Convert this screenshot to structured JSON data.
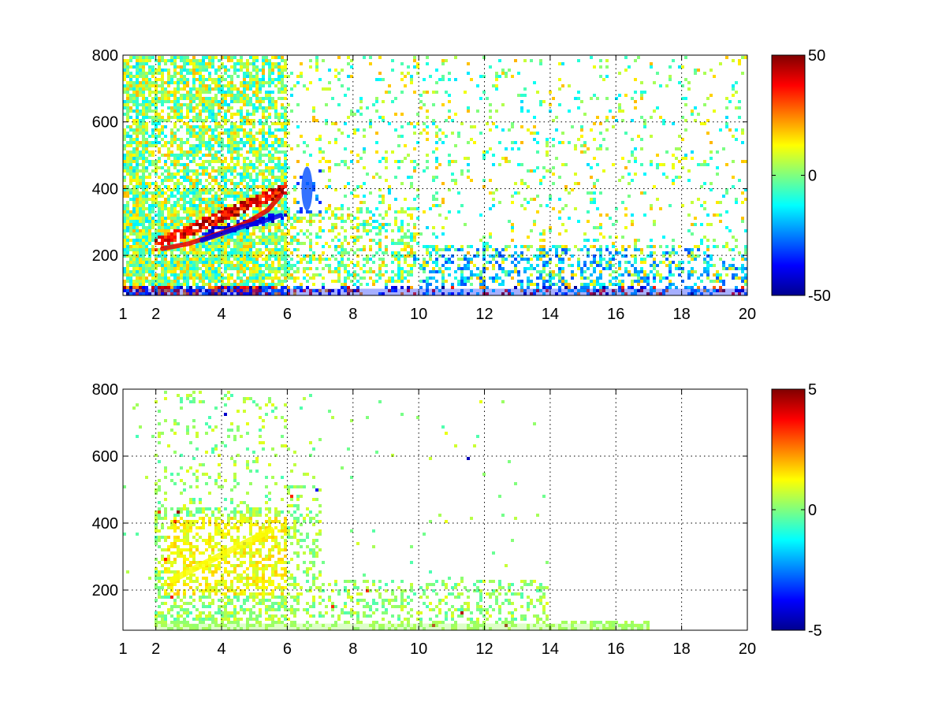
{
  "chart_data": [
    {
      "type": "heatmap",
      "title": "",
      "xlabel": "",
      "ylabel": "",
      "x_range": [
        1,
        20
      ],
      "y_range": [
        80,
        800
      ],
      "x_ticks": [
        1,
        2,
        4,
        6,
        8,
        10,
        12,
        14,
        16,
        18,
        20
      ],
      "y_ticks": [
        200,
        400,
        600,
        800
      ],
      "grid": true,
      "colormap": "jet",
      "colorbar": {
        "range": [
          -50,
          50
        ],
        "ticks": [
          -50,
          0,
          50
        ],
        "placement": "right"
      },
      "notable_features": [
        {
          "label": "positive ridge",
          "x": [
            2.2,
            3.0,
            3.6,
            4.2,
            4.8,
            5.4,
            5.8
          ],
          "y": [
            220,
            235,
            255,
            275,
            300,
            335,
            380
          ],
          "value": 40
        },
        {
          "label": "negative ridge",
          "x": [
            3.4,
            4.0,
            4.6,
            5.2,
            5.8
          ],
          "y": [
            245,
            265,
            285,
            300,
            320
          ],
          "value": -40
        },
        {
          "label": "negative blob",
          "x": [
            6.6
          ],
          "y": [
            400
          ],
          "value": -30
        },
        {
          "label": "low-frequency band",
          "x": [
            1.2,
            20
          ],
          "y": [
            80,
            100
          ],
          "value": -35
        }
      ]
    },
    {
      "type": "heatmap",
      "title": "",
      "xlabel": "",
      "ylabel": "",
      "x_range": [
        1,
        20
      ],
      "y_range": [
        80,
        800
      ],
      "x_ticks": [
        1,
        2,
        4,
        6,
        8,
        10,
        12,
        14,
        16,
        18,
        20
      ],
      "y_ticks": [
        200,
        400,
        600,
        800
      ],
      "grid": true,
      "colormap": "jet",
      "colorbar": {
        "range": [
          -5,
          5
        ],
        "ticks": [
          -5,
          0,
          5
        ],
        "placement": "right"
      },
      "notable_features": [
        {
          "label": "positive region",
          "x": [
            2.5,
            3.5,
            4.5,
            5.5
          ],
          "y": [
            230,
            280,
            330,
            380
          ],
          "value": 1.2
        },
        {
          "label": "low-frequency band",
          "x": [
            2,
            17
          ],
          "y": [
            80,
            100
          ],
          "value": 0.3
        }
      ]
    }
  ]
}
